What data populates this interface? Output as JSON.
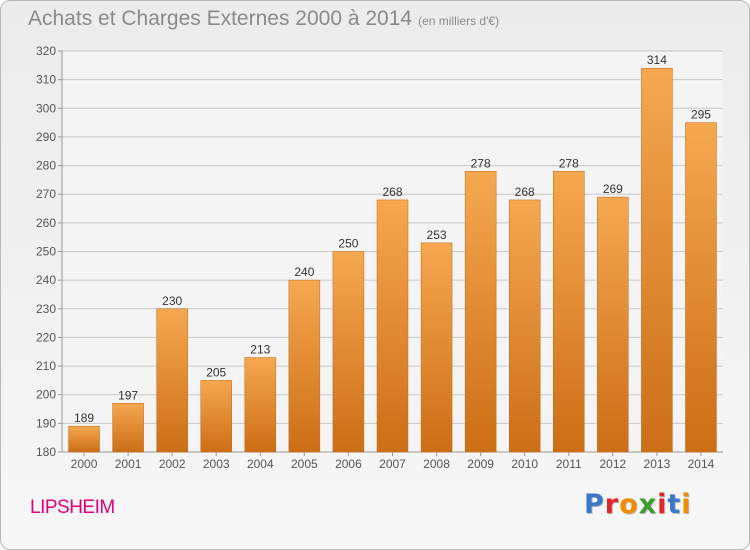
{
  "title": "Achats et Charges Externes 2000 à 2014",
  "subtitle": "(en milliers d'€)",
  "commune": "LIPSHEIM",
  "logo": {
    "text": "Proxiti",
    "letter_colors": [
      "#3a78c9",
      "#e3242b",
      "#f08c00",
      "#3a9e2f",
      "#e3242b",
      "#3a78c9",
      "#f08c00"
    ]
  },
  "colors": {
    "bar_light": "#f5a850",
    "bar_dark": "#cc6e16",
    "grid": "#c8c8c8",
    "axis_text": "#555555",
    "commune": "#e0007a"
  },
  "chart_data": {
    "type": "bar",
    "title": "Achats et Charges Externes 2000 à 2014",
    "subtitle": "(en milliers d'€)",
    "categories": [
      "2000",
      "2001",
      "2002",
      "2003",
      "2004",
      "2005",
      "2006",
      "2007",
      "2008",
      "2009",
      "2010",
      "2011",
      "2012",
      "2013",
      "2014"
    ],
    "values": [
      189,
      197,
      230,
      205,
      213,
      240,
      250,
      268,
      253,
      278,
      268,
      278,
      269,
      314,
      295
    ],
    "ylim": [
      180,
      320
    ],
    "yticks": [
      180,
      190,
      200,
      210,
      220,
      230,
      240,
      250,
      260,
      270,
      280,
      290,
      300,
      310,
      320
    ],
    "grid": true,
    "legend": false
  }
}
